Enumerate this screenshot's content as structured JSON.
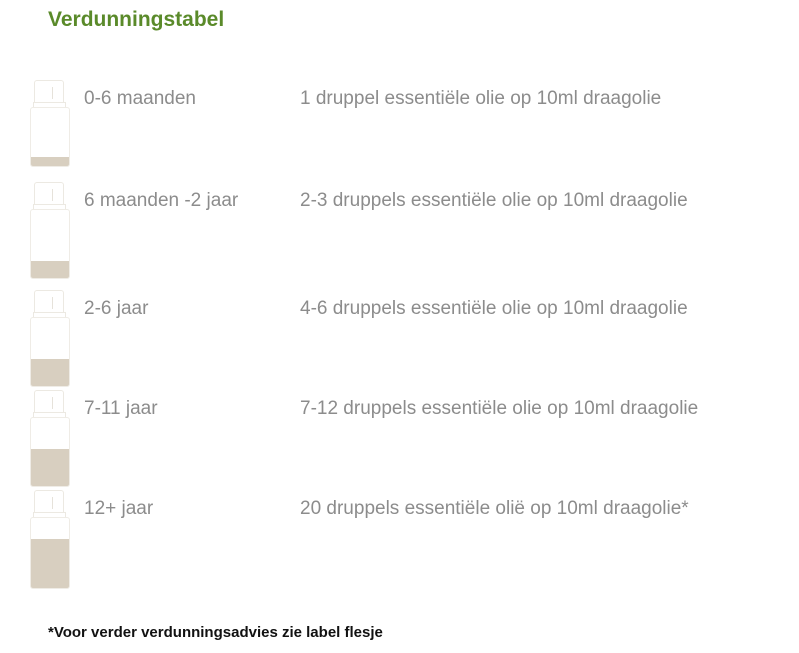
{
  "title": "Verdunningstabel",
  "rows": [
    {
      "age": "0-6 maanden",
      "dose": "1 druppel essentiële olie op 10ml draagolie",
      "fill_level": 0.15
    },
    {
      "age": "6 maanden -2 jaar",
      "dose": "2-3 druppels essentiële olie op 10ml draagolie",
      "fill_level": 0.25
    },
    {
      "age": "2-6 jaar",
      "dose": "4-6 druppels essentiële olie op 10ml draagolie",
      "fill_level": 0.4
    },
    {
      "age": "7-11 jaar",
      "dose": "7-12 druppels essentiële olie op 10ml draagolie",
      "fill_level": 0.55
    },
    {
      "age": "12+ jaar",
      "dose": "20 druppels essentiële olië op 10ml draagolie*",
      "fill_level": 0.7
    }
  ],
  "footnote": "*Voor verder verdunningsadvies zie label flesje",
  "colors": {
    "title": "#5a8a2a",
    "fill": "#d8cfc0",
    "text": "#8c8c8c"
  }
}
